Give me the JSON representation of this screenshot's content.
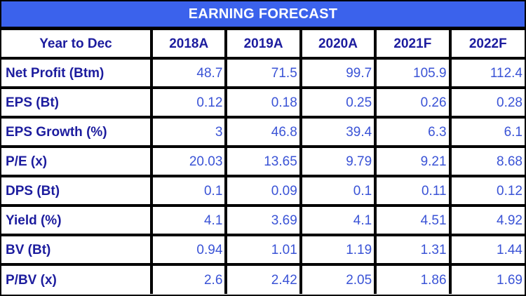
{
  "title": "EARNING FORECAST",
  "colors": {
    "title_bg": "#3B62EC",
    "title_text": "#FFFFFF",
    "header_text": "#1C1C9E",
    "label_text": "#1C1C9E",
    "value_text": "#3A53D6",
    "border": "#000000"
  },
  "chart_data": {
    "type": "table",
    "title": "EARNING FORECAST",
    "columns": [
      "Year to Dec",
      "2018A",
      "2019A",
      "2020A",
      "2021F",
      "2022F"
    ],
    "rows": [
      {
        "label": "Net Profit (Btm)",
        "values": [
          "48.7",
          "71.5",
          "99.7",
          "105.9",
          "112.4"
        ]
      },
      {
        "label": "EPS (Bt)",
        "values": [
          "0.12",
          "0.18",
          "0.25",
          "0.26",
          "0.28"
        ]
      },
      {
        "label": "EPS Growth (%)",
        "values": [
          "3",
          "46.8",
          "39.4",
          "6.3",
          "6.1"
        ]
      },
      {
        "label": "P/E (x)",
        "values": [
          "20.03",
          "13.65",
          "9.79",
          "9.21",
          "8.68"
        ]
      },
      {
        "label": "DPS (Bt)",
        "values": [
          "0.1",
          "0.09",
          "0.1",
          "0.11",
          "0.12"
        ]
      },
      {
        "label": "Yield (%)",
        "values": [
          "4.1",
          "3.69",
          "4.1",
          "4.51",
          "4.92"
        ]
      },
      {
        "label": "BV (Bt)",
        "values": [
          "0.94",
          "1.01",
          "1.19",
          "1.31",
          "1.44"
        ]
      },
      {
        "label": "P/BV (x)",
        "values": [
          "2.6",
          "2.42",
          "2.05",
          "1.86",
          "1.69"
        ]
      }
    ]
  }
}
